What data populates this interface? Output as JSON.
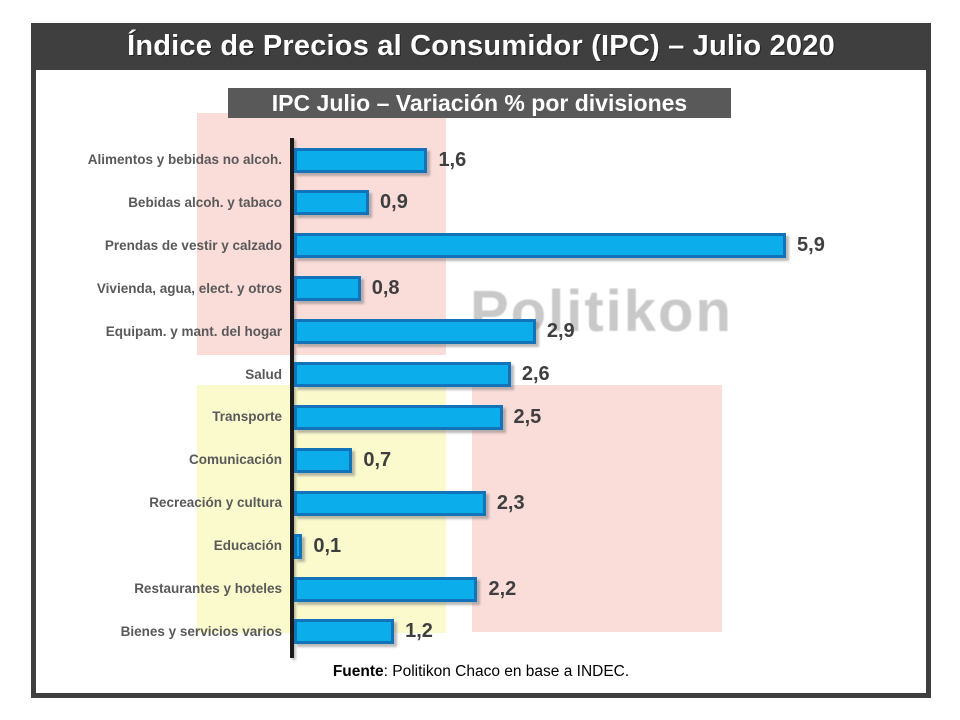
{
  "header": {
    "title": "Índice de Precios al Consumidor (IPC) – Julio 2020"
  },
  "chart": {
    "subtitle": "IPC Julio – Variación % por divisiones",
    "watermark": "Politikon",
    "source_label": "Fuente",
    "source_rest": ": Politikon Chaco en base a INDEC."
  },
  "chart_data": {
    "type": "bar",
    "orientation": "horizontal",
    "title": "IPC Julio – Variación % por divisiones",
    "categories": [
      "Alimentos y bebidas no alcoh.",
      "Bebidas alcoh. y tabaco",
      "Prendas de vestir y calzado",
      "Vivienda, agua, elect. y otros",
      "Equipam. y mant. del hogar",
      "Salud",
      "Transporte",
      "Comunicación",
      "Recreación y cultura",
      "Educación",
      "Restaurantes y hoteles",
      "Bienes y servicios varios"
    ],
    "values": [
      1.6,
      0.9,
      5.9,
      0.8,
      2.9,
      2.6,
      2.5,
      0.7,
      2.3,
      0.1,
      2.2,
      1.2
    ],
    "value_labels": [
      "1,6",
      "0,9",
      "5,9",
      "0,8",
      "2,9",
      "2,6",
      "2,5",
      "0,7",
      "2,3",
      "0,1",
      "2,2",
      "1,2"
    ],
    "unit": "%",
    "xlim": [
      0,
      6.5
    ],
    "grid": false,
    "legend": "none",
    "source": "Fuente: Politikon Chaco en base a INDEC.",
    "watermark": "Politikon"
  },
  "colors": {
    "bar_fill": "#0baeea",
    "bar_border": "#1273b8",
    "title_band_bg": "#3f3f3f",
    "subtitle_bg": "#595959",
    "pink_block": "#fadcd9",
    "yellow_block": "#fafacd",
    "category_label": "#595959",
    "value_label": "#3f3f3f",
    "watermark_gray": "#c9c9c9"
  }
}
